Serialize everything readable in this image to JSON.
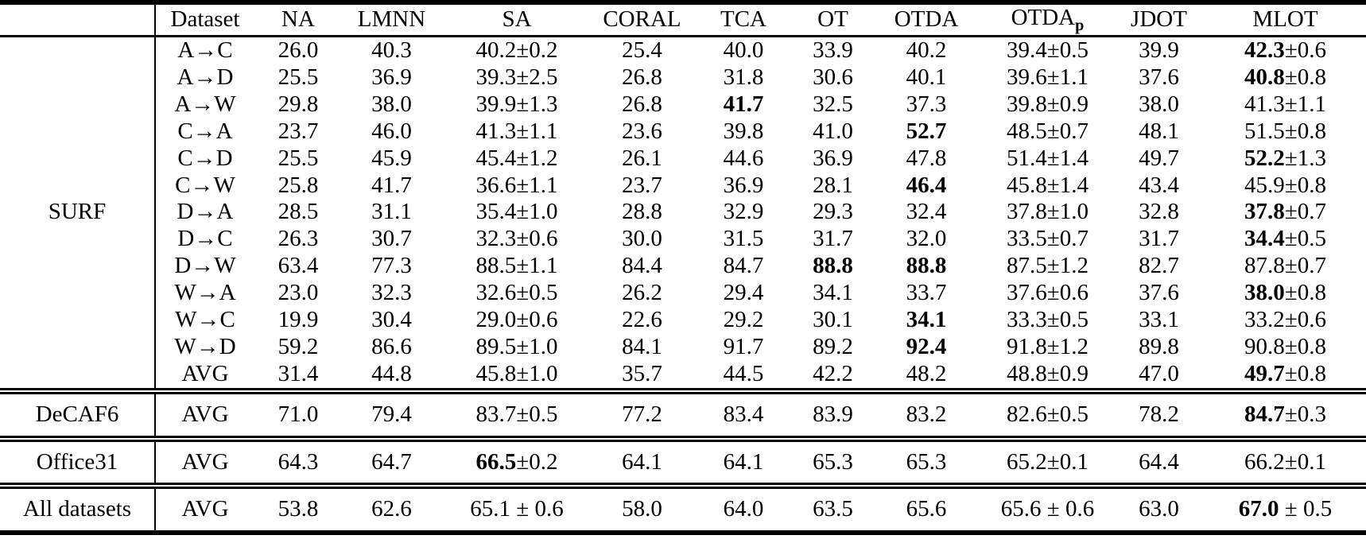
{
  "table": {
    "header": {
      "dataset": "Dataset",
      "methods": [
        "NA",
        "LMNN",
        "SA",
        "CORAL",
        "TCA",
        "OT",
        "OTDA",
        {
          "text": "OTDA",
          "sub": "p"
        },
        "JDOT",
        "MLOT"
      ]
    },
    "sections": [
      {
        "group": "SURF",
        "rows": [
          {
            "dataset": "A→C",
            "values": [
              "26.0",
              "40.3",
              "40.2±0.2",
              "25.4",
              "40.0",
              "33.9",
              "40.2",
              "39.4±0.5",
              "39.9",
              "**42.3**±0.6"
            ]
          },
          {
            "dataset": "A→D",
            "values": [
              "25.5",
              "36.9",
              "39.3±2.5",
              "26.8",
              "31.8",
              "30.6",
              "40.1",
              "39.6±1.1",
              "37.6",
              "**40.8**±0.8"
            ]
          },
          {
            "dataset": "A→W",
            "values": [
              "29.8",
              "38.0",
              "39.9±1.3",
              "26.8",
              "**41.7**",
              "32.5",
              "37.3",
              "39.8±0.9",
              "38.0",
              "41.3±1.1"
            ]
          },
          {
            "dataset": "C→A",
            "values": [
              "23.7",
              "46.0",
              "41.3±1.1",
              "23.6",
              "39.8",
              "41.0",
              "**52.7**",
              "48.5±0.7",
              "48.1",
              "51.5±0.8"
            ]
          },
          {
            "dataset": "C→D",
            "values": [
              "25.5",
              "45.9",
              "45.4±1.2",
              "26.1",
              "44.6",
              "36.9",
              "47.8",
              "51.4±1.4",
              "49.7",
              "**52.2**±1.3"
            ]
          },
          {
            "dataset": "C→W",
            "values": [
              "25.8",
              "41.7",
              "36.6±1.1",
              "23.7",
              "36.9",
              "28.1",
              "**46.4**",
              "45.8±1.4",
              "43.4",
              "45.9±0.8"
            ]
          },
          {
            "dataset": "D→A",
            "values": [
              "28.5",
              "31.1",
              "35.4±1.0",
              "28.8",
              "32.9",
              "29.3",
              "32.4",
              "37.8±1.0",
              "32.8",
              "**37.8**±0.7"
            ]
          },
          {
            "dataset": "D→C",
            "values": [
              "26.3",
              "30.7",
              "32.3±0.6",
              "30.0",
              "31.5",
              "31.7",
              "32.0",
              "33.5±0.7",
              "31.7",
              "**34.4**±0.5"
            ]
          },
          {
            "dataset": "D→W",
            "values": [
              "63.4",
              "77.3",
              "88.5±1.1",
              "84.4",
              "84.7",
              "**88.8**",
              "**88.8**",
              "87.5±1.2",
              "82.7",
              "87.8±0.7"
            ]
          },
          {
            "dataset": "W→A",
            "values": [
              "23.0",
              "32.3",
              "32.6±0.5",
              "26.2",
              "29.4",
              "34.1",
              "33.7",
              "37.6±0.6",
              "37.6",
              "**38.0**±0.8"
            ]
          },
          {
            "dataset": "W→C",
            "values": [
              "19.9",
              "30.4",
              "29.0±0.6",
              "22.6",
              "29.2",
              "30.1",
              "**34.1**",
              "33.3±0.5",
              "33.1",
              "33.2±0.6"
            ]
          },
          {
            "dataset": "W→D",
            "values": [
              "59.2",
              "86.6",
              "89.5±1.0",
              "84.1",
              "91.7",
              "89.2",
              "**92.4**",
              "91.8±1.2",
              "89.8",
              "90.8±0.8"
            ]
          },
          {
            "dataset": "AVG",
            "values": [
              "31.4",
              "44.8",
              "45.8±1.0",
              "35.7",
              "44.5",
              "42.2",
              "48.2",
              "48.8±0.9",
              "47.0",
              "**49.7**±0.8"
            ]
          }
        ]
      },
      {
        "group": "DeCAF6",
        "rows": [
          {
            "dataset": "AVG",
            "values": [
              "71.0",
              "79.4",
              "83.7±0.5",
              "77.2",
              "83.4",
              "83.9",
              "83.2",
              "82.6±0.5",
              "78.2",
              "**84.7**±0.3"
            ]
          }
        ]
      },
      {
        "group": "Office31",
        "rows": [
          {
            "dataset": "AVG",
            "values": [
              "64.3",
              "64.7",
              "**66.5**±0.2",
              "64.1",
              "64.1",
              "65.3",
              "65.3",
              "65.2±0.1",
              "64.4",
              "66.2±0.1"
            ]
          }
        ]
      },
      {
        "group": "All datasets",
        "rows": [
          {
            "dataset": "AVG",
            "values": [
              "53.8",
              "62.6",
              "65.1 ± 0.6",
              "58.0",
              "64.0",
              "63.5",
              "65.6",
              "65.6 ± 0.6",
              "63.0",
              "**67.0** ± 0.5"
            ]
          }
        ]
      }
    ]
  }
}
